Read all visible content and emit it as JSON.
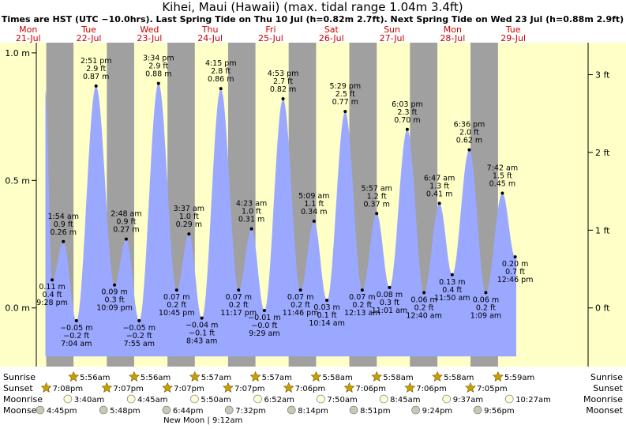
{
  "title": "Kihei, Maui (Hawaii) (max. tidal range 1.04m 3.4ft)",
  "subtitle": "Times are HST (UTC −10.0hrs). Last Spring Tide on Thu 10 Jul (h=0.82m 2.7ft). Next Spring Tide on Wed 23 Jul (h=0.88m 2.9ft)",
  "colors": {
    "water": "#9aa8ff",
    "day": "#ffffc8",
    "night": "#a0a0a0",
    "day_header": "#cc0000",
    "sun": "#c8a000",
    "moon": "#d8d8c0"
  },
  "chart_data": {
    "type": "area",
    "x_unit": "hours since Mon 21 Jul 00:00 HST",
    "ylim": [
      -0.23,
      1.04
    ],
    "yticks_m": [
      {
        "value": 1.0,
        "label": "1.0 m"
      },
      {
        "value": 0.5,
        "label": "0.5 m"
      },
      {
        "value": 0.0,
        "label": "0.0 m"
      }
    ],
    "yticks_ft": [
      {
        "value": 0.9144,
        "label": "3 ft"
      },
      {
        "value": 0.6096,
        "label": "2 ft"
      },
      {
        "value": 0.3048,
        "label": "1 ft"
      },
      {
        "value": 0.0,
        "label": "0 ft"
      }
    ],
    "days": [
      {
        "dow": "Mon",
        "date": "21-Jul"
      },
      {
        "dow": "Tue",
        "date": "22-Jul"
      },
      {
        "dow": "Wed",
        "date": "23-Jul"
      },
      {
        "dow": "Thu",
        "date": "24-Jul"
      },
      {
        "dow": "Fri",
        "date": "25-Jul"
      },
      {
        "dow": "Sat",
        "date": "26-Jul"
      },
      {
        "dow": "Sun",
        "date": "27-Jul"
      },
      {
        "dow": "Mon",
        "date": "28-Jul"
      },
      {
        "dow": "Tue",
        "date": "29-Jul"
      }
    ],
    "tides": [
      {
        "t": 21.47,
        "h": 0.11,
        "time": "9:28 pm",
        "ft": "0.4 ft",
        "m": "0.11 m",
        "hi": false
      },
      {
        "t": 25.9,
        "h": 0.26,
        "time": "1:54 am",
        "ft": "0.9 ft",
        "m": "0.26 m",
        "hi": true
      },
      {
        "t": 31.07,
        "h": -0.05,
        "time": "7:04 am",
        "ft": "−0.2 ft",
        "m": "−0.05 m",
        "hi": false
      },
      {
        "t": 38.85,
        "h": 0.87,
        "time": "2:51 pm",
        "ft": "2.9 ft",
        "m": "0.87 m",
        "hi": true
      },
      {
        "t": 46.15,
        "h": 0.09,
        "time": "10:09 pm",
        "ft": "0.3 ft",
        "m": "0.09 m",
        "hi": false
      },
      {
        "t": 50.8,
        "h": 0.27,
        "time": "2:48 am",
        "ft": "0.9 ft",
        "m": "0.27 m",
        "hi": true
      },
      {
        "t": 55.92,
        "h": -0.05,
        "time": "7:55 am",
        "ft": "−0.2 ft",
        "m": "−0.05 m",
        "hi": false
      },
      {
        "t": 63.57,
        "h": 0.88,
        "time": "3:34 pm",
        "ft": "2.9 ft",
        "m": "0.88 m",
        "hi": true
      },
      {
        "t": 70.75,
        "h": 0.07,
        "time": "10:45 pm",
        "ft": "0.2 ft",
        "m": "0.07 m",
        "hi": false
      },
      {
        "t": 75.62,
        "h": 0.29,
        "time": "3:37 am",
        "ft": "1.0 ft",
        "m": "0.29 m",
        "hi": true
      },
      {
        "t": 80.72,
        "h": -0.04,
        "time": "8:43 am",
        "ft": "−0.1 ft",
        "m": "−0.04 m",
        "hi": false
      },
      {
        "t": 88.25,
        "h": 0.86,
        "time": "4:15 pm",
        "ft": "2.8 ft",
        "m": "0.86 m",
        "hi": true
      },
      {
        "t": 95.28,
        "h": 0.07,
        "time": "11:17 pm",
        "ft": "0.2 ft",
        "m": "0.07 m",
        "hi": false
      },
      {
        "t": 100.38,
        "h": 0.31,
        "time": "4:23 am",
        "ft": "1.0 ft",
        "m": "0.31 m",
        "hi": true
      },
      {
        "t": 105.48,
        "h": -0.01,
        "time": "9:29 am",
        "ft": "−0.0 ft",
        "m": "−0.01 m",
        "hi": false
      },
      {
        "t": 112.88,
        "h": 0.82,
        "time": "4:53 pm",
        "ft": "2.7 ft",
        "m": "0.82 m",
        "hi": true
      },
      {
        "t": 119.77,
        "h": 0.07,
        "time": "11:46 pm",
        "ft": "0.2 ft",
        "m": "0.07 m",
        "hi": false
      },
      {
        "t": 125.15,
        "h": 0.34,
        "time": "5:09 am",
        "ft": "1.1 ft",
        "m": "0.34 m",
        "hi": true
      },
      {
        "t": 130.23,
        "h": 0.03,
        "time": "10:14 am",
        "ft": "0.1 ft",
        "m": "0.03 m",
        "hi": false
      },
      {
        "t": 137.48,
        "h": 0.77,
        "time": "5:29 pm",
        "ft": "2.5 ft",
        "m": "0.77 m",
        "hi": true
      },
      {
        "t": 144.22,
        "h": 0.07,
        "time": "12:13 am",
        "ft": "0.2 ft",
        "m": "0.07 m",
        "hi": false
      },
      {
        "t": 149.95,
        "h": 0.37,
        "time": "5:57 am",
        "ft": "1.2 ft",
        "m": "0.37 m",
        "hi": true
      },
      {
        "t": 155.02,
        "h": 0.08,
        "time": "11:01 am",
        "ft": "0.3 ft",
        "m": "0.08 m",
        "hi": false
      },
      {
        "t": 162.05,
        "h": 0.7,
        "time": "6:03 pm",
        "ft": "2.3 ft",
        "m": "0.70 m",
        "hi": true
      },
      {
        "t": 168.67,
        "h": 0.06,
        "time": "12:40 am",
        "ft": "0.2 ft",
        "m": "0.06 m",
        "hi": false
      },
      {
        "t": 174.78,
        "h": 0.41,
        "time": "6:47 am",
        "ft": "1.3 ft",
        "m": "0.41 m",
        "hi": true
      },
      {
        "t": 179.83,
        "h": 0.13,
        "time": "11:50 am",
        "ft": "0.4 ft",
        "m": "0.13 m",
        "hi": false
      },
      {
        "t": 186.6,
        "h": 0.62,
        "time": "6:36 pm",
        "ft": "2.0 ft",
        "m": "0.62 m",
        "hi": true
      },
      {
        "t": 193.15,
        "h": 0.06,
        "time": "1:09 am",
        "ft": "0.2 ft",
        "m": "0.06 m",
        "hi": false
      },
      {
        "t": 199.7,
        "h": 0.45,
        "time": "7:42 am",
        "ft": "1.5 ft",
        "m": "0.45 m",
        "hi": true
      },
      {
        "t": 204.77,
        "h": 0.2,
        "time": "12:46 pm",
        "ft": "0.7 ft",
        "m": "0.20 m",
        "hi": false
      }
    ],
    "curve_start": {
      "t": 18.8,
      "h": 0.85
    },
    "curve_end_t": 205.2,
    "sunrise": [
      {
        "t": 29.93,
        "label": "5:56am"
      },
      {
        "t": 53.93,
        "label": "5:56am"
      },
      {
        "t": 77.95,
        "label": "5:57am"
      },
      {
        "t": 101.95,
        "label": "5:57am"
      },
      {
        "t": 125.97,
        "label": "5:58am"
      },
      {
        "t": 149.97,
        "label": "5:58am"
      },
      {
        "t": 173.97,
        "label": "5:58am"
      },
      {
        "t": 197.98,
        "label": "5:59am"
      }
    ],
    "sunset": [
      {
        "t": 19.13,
        "label": "7:08pm"
      },
      {
        "t": 43.12,
        "label": "7:07pm"
      },
      {
        "t": 67.12,
        "label": "7:07pm"
      },
      {
        "t": 91.12,
        "label": "7:07pm"
      },
      {
        "t": 115.1,
        "label": "7:06pm"
      },
      {
        "t": 139.1,
        "label": "7:06pm"
      },
      {
        "t": 163.1,
        "label": "7:06pm"
      },
      {
        "t": 187.08,
        "label": "7:05pm"
      }
    ],
    "moonrise": [
      {
        "t": 27.67,
        "label": "3:40am"
      },
      {
        "t": 52.75,
        "label": "4:45am"
      },
      {
        "t": 77.83,
        "label": "5:50am"
      },
      {
        "t": 102.87,
        "label": "6:52am"
      },
      {
        "t": 127.83,
        "label": "7:50am"
      },
      {
        "t": 152.75,
        "label": "8:45am"
      },
      {
        "t": 177.62,
        "label": "9:37am"
      },
      {
        "t": 202.45,
        "label": "10:27am"
      }
    ],
    "moonset": [
      {
        "t": 16.75,
        "label": "4:45pm"
      },
      {
        "t": 41.8,
        "label": "5:48pm"
      },
      {
        "t": 66.73,
        "label": "6:44pm"
      },
      {
        "t": 91.53,
        "label": "7:32pm"
      },
      {
        "t": 116.23,
        "label": "8:14pm"
      },
      {
        "t": 140.85,
        "label": "8:51pm"
      },
      {
        "t": 165.4,
        "label": "9:24pm"
      },
      {
        "t": 189.93,
        "label": "9:56pm"
      }
    ],
    "row_labels": {
      "sunrise": "Sunrise",
      "sunset": "Sunset",
      "moonrise": "Moonrise",
      "moonset": "Moonset"
    },
    "new_moon": {
      "t": 81.2,
      "label": "New Moon | 9:12am"
    }
  }
}
